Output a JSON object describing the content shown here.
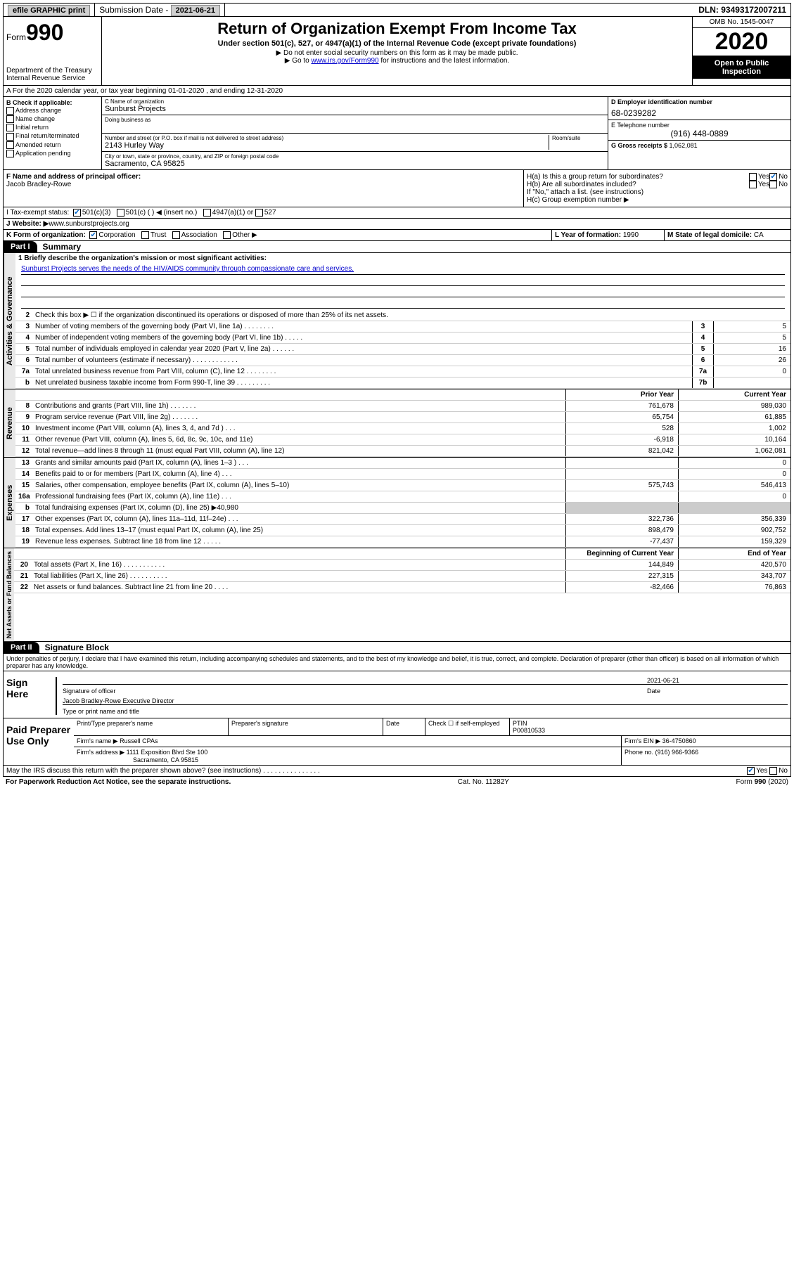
{
  "topbar": {
    "efile": "efile GRAPHIC print",
    "submission_label": "Submission Date - ",
    "submission_date": "2021-06-21",
    "dln_label": "DLN: ",
    "dln": "93493172007211"
  },
  "header": {
    "form_prefix": "Form",
    "form_num": "990",
    "dept": "Department of the Treasury\nInternal Revenue Service",
    "title": "Return of Organization Exempt From Income Tax",
    "sub1": "Under section 501(c), 527, or 4947(a)(1) of the Internal Revenue Code (except private foundations)",
    "sub2": "▶ Do not enter social security numbers on this form as it may be made public.",
    "sub3_pre": "▶ Go to ",
    "sub3_link": "www.irs.gov/Form990",
    "sub3_post": " for instructions and the latest information.",
    "omb": "OMB No. 1545-0047",
    "year": "2020",
    "inspect": "Open to Public Inspection"
  },
  "row_a": "A   For the 2020 calendar year, or tax year beginning 01-01-2020   , and ending 12-31-2020",
  "col_b": {
    "hdr": "B Check if applicable:",
    "items": [
      "Address change",
      "Name change",
      "Initial return",
      "Final return/terminated",
      "Amended return",
      "Application pending"
    ]
  },
  "col_c": {
    "name_lbl": "C Name of organization",
    "name": "Sunburst Projects",
    "dba_lbl": "Doing business as",
    "addr_lbl": "Number and street (or P.O. box if mail is not delivered to street address)",
    "room_lbl": "Room/suite",
    "addr": "2143 Hurley Way",
    "city_lbl": "City or town, state or province, country, and ZIP or foreign postal code",
    "city": "Sacramento, CA  95825"
  },
  "col_d": {
    "ein_lbl": "D Employer identification number",
    "ein": "68-0239282",
    "phone_lbl": "E Telephone number",
    "phone": "(916) 448-0889",
    "gross_lbl": "G Gross receipts $ ",
    "gross": "1,062,081"
  },
  "sec_f": {
    "lbl": "F  Name and address of principal officer:",
    "name": "Jacob Bradley-Rowe"
  },
  "sec_h": {
    "a": "H(a)  Is this a group return for subordinates?",
    "b": "H(b)  Are all subordinates included?",
    "b_note": "If \"No,\" attach a list. (see instructions)",
    "c": "H(c)  Group exemption number ▶"
  },
  "tax_status": {
    "lbl": "I    Tax-exempt status:",
    "opt1": "501(c)(3)",
    "opt2": "501(c) (  ) ◀ (insert no.)",
    "opt3": "4947(a)(1) or",
    "opt4": "527"
  },
  "website": {
    "lbl": "J   Website: ▶  ",
    "val": "www.sunburstprojects.org"
  },
  "sec_k": {
    "k": "K Form of organization:",
    "opts": [
      "Corporation",
      "Trust",
      "Association",
      "Other ▶"
    ],
    "l_lbl": "L Year of formation: ",
    "l_val": "1990",
    "m_lbl": "M State of legal domicile: ",
    "m_val": "CA"
  },
  "part1": {
    "hdr": "Part I",
    "title": "Summary",
    "vtabs": [
      "Activities & Governance",
      "Revenue",
      "Expenses",
      "Net Assets or Fund Balances"
    ],
    "q1_lbl": "1  Briefly describe the organization's mission or most significant activities:",
    "q1_val": "Sunburst Projects serves the needs of the HIV/AIDS community through compassionate care and services.",
    "q2": "Check this box ▶ ☐  if the organization discontinued its operations or disposed of more than 25% of its net assets.",
    "lines_gov": [
      {
        "n": "3",
        "t": "Number of voting members of the governing body (Part VI, line 1a)   .    .    .    .    .    .    .    .",
        "box": "3",
        "v": "5"
      },
      {
        "n": "4",
        "t": "Number of independent voting members of the governing body (Part VI, line 1b)  .    .    .    .    .",
        "box": "4",
        "v": "5"
      },
      {
        "n": "5",
        "t": "Total number of individuals employed in calendar year 2020 (Part V, line 2a)  .    .    .    .    .    .",
        "box": "5",
        "v": "16"
      },
      {
        "n": "6",
        "t": "Total number of volunteers (estimate if necessary)   .    .    .    .    .    .    .    .    .    .    .    .",
        "box": "6",
        "v": "26"
      },
      {
        "n": "7a",
        "t": "Total unrelated business revenue from Part VIII, column (C), line 12  .    .    .    .    .    .    .    .",
        "box": "7a",
        "v": "0"
      },
      {
        "n": "b",
        "t": "Net unrelated business taxable income from Form 990-T, line 39  .    .    .    .    .    .    .    .    .",
        "box": "7b",
        "v": ""
      }
    ],
    "col_prior": "Prior Year",
    "col_curr": "Current Year",
    "lines_rev": [
      {
        "n": "8",
        "t": "Contributions and grants (Part VIII, line 1h)   .    .    .    .    .    .    .",
        "p": "761,678",
        "c": "989,030"
      },
      {
        "n": "9",
        "t": "Program service revenue (Part VIII, line 2g)   .    .    .    .    .    .    .",
        "p": "65,754",
        "c": "61,885"
      },
      {
        "n": "10",
        "t": "Investment income (Part VIII, column (A), lines 3, 4, and 7d )   .    .    .",
        "p": "528",
        "c": "1,002"
      },
      {
        "n": "11",
        "t": "Other revenue (Part VIII, column (A), lines 5, 6d, 8c, 9c, 10c, and 11e)",
        "p": "-6,918",
        "c": "10,164"
      },
      {
        "n": "12",
        "t": "Total revenue—add lines 8 through 11 (must equal Part VIII, column (A), line 12)",
        "p": "821,042",
        "c": "1,062,081"
      }
    ],
    "lines_exp": [
      {
        "n": "13",
        "t": "Grants and similar amounts paid (Part IX, column (A), lines 1–3 )  .    .    .",
        "p": "",
        "c": "0"
      },
      {
        "n": "14",
        "t": "Benefits paid to or for members (Part IX, column (A), line 4)   .    .    .",
        "p": "",
        "c": "0"
      },
      {
        "n": "15",
        "t": "Salaries, other compensation, employee benefits (Part IX, column (A), lines 5–10)",
        "p": "575,743",
        "c": "546,413"
      },
      {
        "n": "16a",
        "t": "Professional fundraising fees (Part IX, column (A), line 11e)   .    .    .",
        "p": "",
        "c": "0"
      },
      {
        "n": "b",
        "t": "Total fundraising expenses (Part IX, column (D), line 25) ▶40,980",
        "p": "shade",
        "c": "shade"
      },
      {
        "n": "17",
        "t": "Other expenses (Part IX, column (A), lines 11a–11d, 11f–24e)  .    .    .",
        "p": "322,736",
        "c": "356,339"
      },
      {
        "n": "18",
        "t": "Total expenses. Add lines 13–17 (must equal Part IX, column (A), line 25)",
        "p": "898,479",
        "c": "902,752"
      },
      {
        "n": "19",
        "t": "Revenue less expenses. Subtract line 18 from line 12    .    .    .    .    .",
        "p": "-77,437",
        "c": "159,329"
      }
    ],
    "col_begin": "Beginning of Current Year",
    "col_end": "End of Year",
    "lines_net": [
      {
        "n": "20",
        "t": "Total assets (Part X, line 16)   .    .    .    .    .    .    .    .    .    .    .",
        "p": "144,849",
        "c": "420,570"
      },
      {
        "n": "21",
        "t": "Total liabilities (Part X, line 26)   .    .    .    .    .    .    .    .    .    .",
        "p": "227,315",
        "c": "343,707"
      },
      {
        "n": "22",
        "t": "Net assets or fund balances. Subtract line 21 from line 20   .    .    .    .",
        "p": "-82,466",
        "c": "76,863"
      }
    ]
  },
  "part2": {
    "hdr": "Part II",
    "title": "Signature Block",
    "declaration": "Under penalties of perjury, I declare that I have examined this return, including accompanying schedules and statements, and to the best of my knowledge and belief, it is true, correct, and complete. Declaration of preparer (other than officer) is based on all information of which preparer has any knowledge.",
    "sign_here": "Sign Here",
    "sig_officer_lbl": "Signature of officer",
    "sig_date": "2021-06-21",
    "sig_date_lbl": "Date",
    "officer_name": "Jacob Bradley-Rowe  Executive Director",
    "officer_name_lbl": "Type or print name and title",
    "paid": "Paid Preparer Use Only",
    "prep_name_lbl": "Print/Type preparer's name",
    "prep_sig_lbl": "Preparer's signature",
    "prep_date_lbl": "Date",
    "prep_check_lbl": "Check ☐ if self-employed",
    "ptin_lbl": "PTIN",
    "ptin": "P00810533",
    "firm_name_lbl": "Firm's name    ▶ ",
    "firm_name": "Russell CPAs",
    "firm_ein_lbl": "Firm's EIN ▶ ",
    "firm_ein": "36-4750860",
    "firm_addr_lbl": "Firm's address ▶ ",
    "firm_addr": "1111 Exposition Blvd Ste 100",
    "firm_city": "Sacramento, CA  95815",
    "firm_phone_lbl": "Phone no. ",
    "firm_phone": "(916) 966-9366",
    "discuss": "May the IRS discuss this return with the preparer shown above? (see instructions)   .    .    .    .    .    .    .    .    .    .    .    .    .    .    ."
  },
  "footer": {
    "left": "For Paperwork Reduction Act Notice, see the separate instructions.",
    "mid": "Cat. No. 11282Y",
    "right": "Form 990 (2020)"
  },
  "yes": "Yes",
  "no": "No"
}
